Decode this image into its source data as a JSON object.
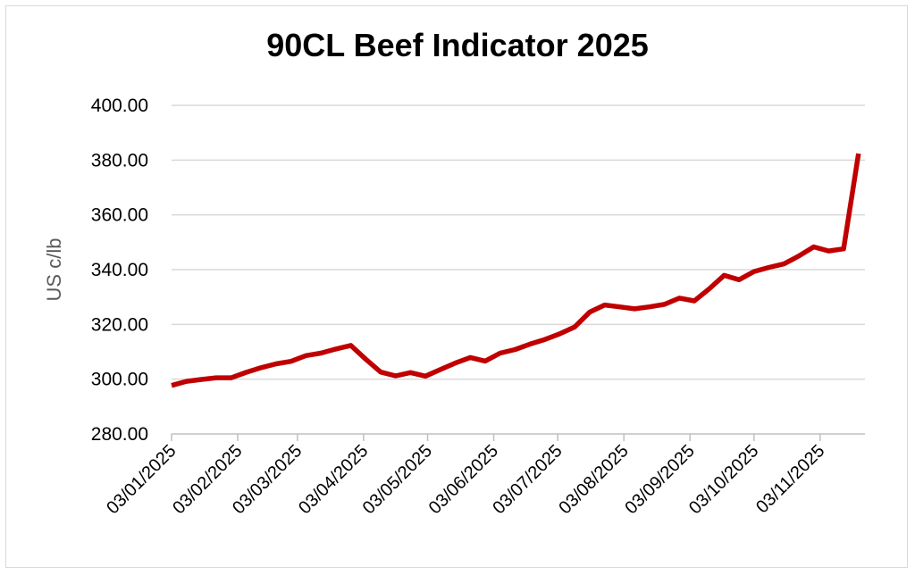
{
  "chart_data": {
    "type": "line",
    "title": "90CL Beef Indicator 2025",
    "xlabel": "",
    "ylabel": "US c/lb",
    "ylim": [
      280,
      400
    ],
    "y_ticks": [
      "280.00",
      "300.00",
      "320.00",
      "340.00",
      "360.00",
      "380.00",
      "400.00"
    ],
    "x_tick_labels": [
      "03/01/2025",
      "03/02/2025",
      "03/03/2025",
      "03/04/2025",
      "03/05/2025",
      "03/06/2025",
      "03/07/2025",
      "03/08/2025",
      "03/09/2025",
      "03/10/2025",
      "03/11/2025"
    ],
    "x_ticks": [
      "2025-01-03",
      "2025-02-03",
      "2025-03-03",
      "2025-04-03",
      "2025-05-03",
      "2025-06-03",
      "2025-07-03",
      "2025-08-03",
      "2025-09-03",
      "2025-10-03",
      "2025-11-03"
    ],
    "x_range": [
      "2025-01-03",
      "2025-11-24"
    ],
    "grid": "horizontal",
    "legend": "none",
    "series": [
      {
        "color": "#c00000",
        "x": [
          "2025-01-03",
          "2025-01-10",
          "2025-01-17",
          "2025-01-24",
          "2025-01-31",
          "2025-02-07",
          "2025-02-14",
          "2025-02-21",
          "2025-02-28",
          "2025-03-07",
          "2025-03-14",
          "2025-03-21",
          "2025-03-28",
          "2025-04-04",
          "2025-04-11",
          "2025-04-18",
          "2025-04-25",
          "2025-05-02",
          "2025-05-09",
          "2025-05-16",
          "2025-05-23",
          "2025-05-30",
          "2025-06-06",
          "2025-06-13",
          "2025-06-20",
          "2025-06-27",
          "2025-07-04",
          "2025-07-11",
          "2025-07-18",
          "2025-07-25",
          "2025-08-01",
          "2025-08-08",
          "2025-08-15",
          "2025-08-22",
          "2025-08-29",
          "2025-09-05",
          "2025-09-12",
          "2025-09-19",
          "2025-09-26",
          "2025-10-03",
          "2025-10-10",
          "2025-10-17",
          "2025-10-24",
          "2025-10-31",
          "2025-11-07",
          "2025-11-14",
          "2025-11-21"
        ],
        "y": [
          297.7,
          299.2,
          299.9,
          300.5,
          300.5,
          302.5,
          304.2,
          305.6,
          306.5,
          308.6,
          309.5,
          311.0,
          312.3,
          307.3,
          302.6,
          301.2,
          302.4,
          301.1,
          303.5,
          305.9,
          307.9,
          306.6,
          309.5,
          310.8,
          312.8,
          314.5,
          316.6,
          319.1,
          324.5,
          327.1,
          326.4,
          325.7,
          326.4,
          327.3,
          329.6,
          328.6,
          333.0,
          337.9,
          336.3,
          339.3,
          340.8,
          342.1,
          345.0,
          348.3,
          346.8,
          347.6,
          382.4
        ]
      }
    ]
  }
}
